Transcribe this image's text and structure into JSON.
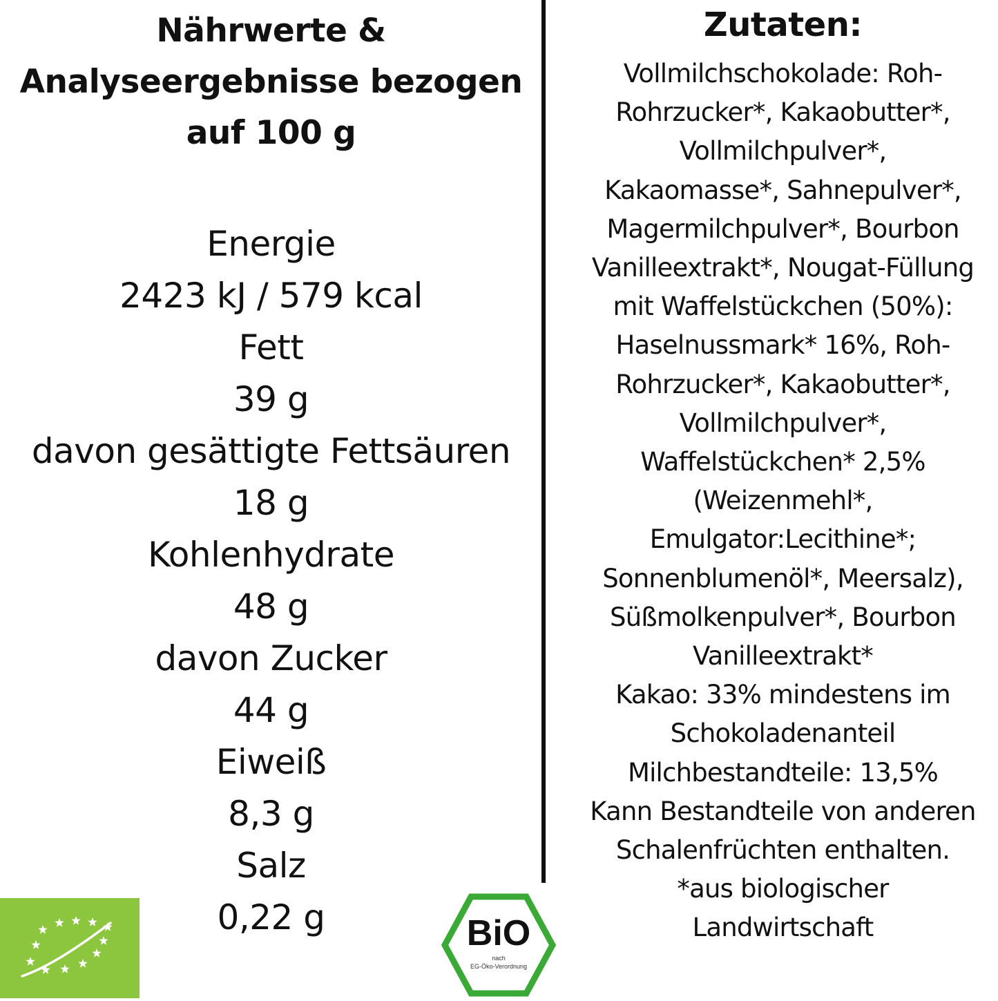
{
  "nutrition": {
    "title_lines": [
      "Nährwerte &",
      "Analyseergebnisse bezogen",
      "auf 100 g"
    ],
    "rows": [
      "Energie",
      "2423 kJ / 579 kcal",
      "Fett",
      "39 g",
      "davon gesättigte Fettsäuren",
      "18 g",
      "Kohlenhydrate",
      "48 g",
      "davon Zucker",
      "44 g",
      "Eiweiß",
      "8,3 g",
      "Salz",
      "0,22 g"
    ]
  },
  "ingredients": {
    "title": "Zutaten:",
    "lines": [
      "Vollmilchschokolade: Roh-",
      "Rohrzucker*, Kakaobutter*,",
      "Vollmilchpulver*,",
      "Kakaomasse*, Sahnepulver*,",
      "Magermilchpulver*, Bourbon",
      "Vanilleextrakt*, Nougat-Füllung",
      "mit Waffelstückchen (50%):",
      "Haselnussmark* 16%, Roh-",
      "Rohrzucker*, Kakaobutter*,",
      "Vollmilchpulver*,",
      "Waffelstückchen* 2,5%",
      "(Weizenmehl*,",
      "Emulgator:Lecithine*;",
      "Sonnenblumenöl*, Meersalz),",
      "Süßmolkenpulver*, Bourbon",
      "Vanilleextrakt*",
      "Kakao: 33% mindestens im",
      "Schokoladenanteil",
      "Milchbestandteile: 13,5%",
      "Kann Bestandteile von anderen",
      "Schalenfrüchten enthalten.",
      "*aus biologischer",
      "Landwirtschaft"
    ]
  },
  "logos": {
    "eu_organic": {
      "icon": "eu-organic-leaf-icon",
      "color": "#8cc63f"
    },
    "bio_seal": {
      "icon": "bio-hexagon-seal-icon",
      "text": "BiO",
      "subtext_1": "nach",
      "subtext_2": "EG-Öko-Verordnung",
      "color": "#3aa935"
    }
  }
}
